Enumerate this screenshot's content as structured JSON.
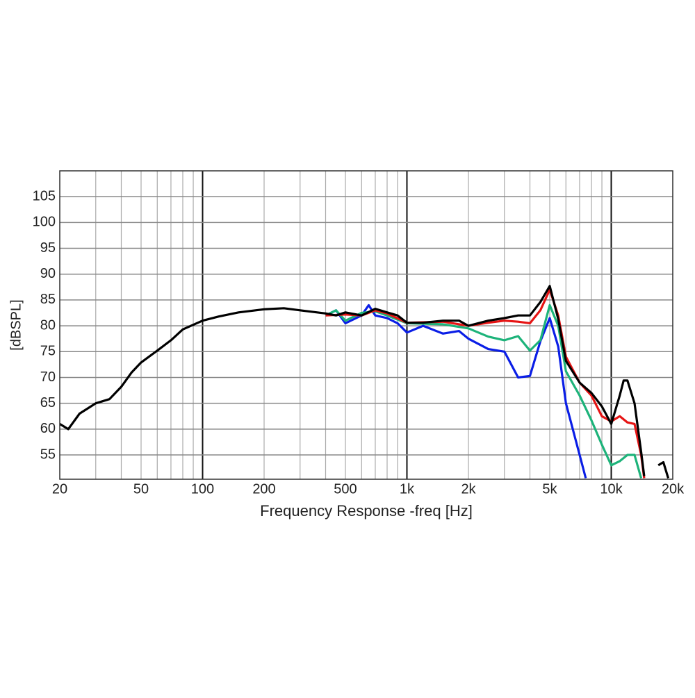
{
  "chart_data": {
    "type": "line",
    "xlabel": "Frequency Response -freq [Hz]",
    "ylabel": "[dBSPL]",
    "xscale": "log",
    "xlim": [
      20,
      20000
    ],
    "ylim": [
      50.3,
      110
    ],
    "xticks": [
      20,
      50,
      100,
      200,
      500,
      {
        "value": 1000,
        "label": "1k"
      },
      {
        "value": 2000,
        "label": "2k"
      },
      {
        "value": 5000,
        "label": "5k"
      },
      {
        "value": 10000,
        "label": "10k"
      },
      {
        "value": 20000,
        "label": "20k"
      }
    ],
    "yticks": [
      55,
      60,
      65,
      70,
      75,
      80,
      85,
      90,
      95,
      100,
      105
    ],
    "xgrid": [
      20,
      30,
      40,
      50,
      60,
      70,
      80,
      90,
      100,
      200,
      300,
      400,
      500,
      600,
      700,
      800,
      900,
      1000,
      2000,
      3000,
      4000,
      5000,
      6000,
      7000,
      8000,
      9000,
      10000,
      20000
    ],
    "xgrid_major": [
      100,
      1000,
      10000
    ],
    "grid": true,
    "series": [
      {
        "name": "blue",
        "color": "#0a1ee6",
        "x": [
          400,
          450,
          500,
          600,
          650,
          700,
          800,
          900,
          1000,
          1200,
          1500,
          1800,
          2000,
          2500,
          3000,
          3500,
          4000,
          4500,
          5000,
          5500,
          6000,
          7000,
          7500
        ],
        "values": [
          82,
          83,
          80.5,
          82,
          84,
          82,
          81.5,
          80.5,
          78.7,
          80,
          78.5,
          79,
          77.5,
          75.5,
          75,
          70,
          70.3,
          77,
          81.5,
          76,
          65,
          55,
          50.5
        ]
      },
      {
        "name": "green",
        "color": "#1db37a",
        "x": [
          400,
          450,
          500,
          600,
          700,
          800,
          1000,
          1500,
          2000,
          2500,
          3000,
          3500,
          4000,
          4500,
          5000,
          5500,
          6000,
          7000,
          8000,
          9000,
          10000,
          11000,
          12000,
          13000,
          14000
        ],
        "values": [
          82,
          83,
          81,
          82.5,
          82.8,
          82,
          80.5,
          80.3,
          79.5,
          77.9,
          77.2,
          78,
          75.2,
          77.2,
          84,
          80,
          71.2,
          66.5,
          61.7,
          57,
          53,
          53.8,
          55,
          55,
          50.5
        ]
      },
      {
        "name": "red",
        "color": "#e61414",
        "x": [
          400,
          500,
          600,
          700,
          800,
          1000,
          1500,
          2000,
          2500,
          3000,
          3500,
          4000,
          4500,
          5000,
          5500,
          6000,
          7000,
          8000,
          9000,
          10000,
          11000,
          12000,
          13000,
          14000,
          14500
        ],
        "values": [
          82,
          82.2,
          82,
          83,
          82.4,
          80.6,
          80.8,
          80,
          80.6,
          81,
          80.8,
          80.5,
          83,
          87,
          82,
          74,
          69,
          66.5,
          62.5,
          61.5,
          62.5,
          61.3,
          61,
          55,
          50.5
        ]
      },
      {
        "name": "black",
        "color": "#000000",
        "x": [
          20,
          22,
          25,
          30,
          35,
          40,
          45,
          50,
          60,
          70,
          80,
          100,
          120,
          150,
          200,
          250,
          300,
          400,
          450,
          500,
          600,
          700,
          800,
          900,
          1000,
          1200,
          1500,
          1800,
          2000,
          2500,
          3000,
          3500,
          4000,
          4500,
          5000,
          5500,
          6000,
          7000,
          8000,
          9000,
          10000,
          11000,
          11500,
          12000,
          13000,
          14000,
          14500,
          16000,
          17000,
          18000,
          19000
        ],
        "values": [
          61,
          60,
          63,
          65,
          65.8,
          68.2,
          71,
          72.9,
          75.2,
          77.2,
          79.3,
          81,
          81.8,
          82.6,
          83.2,
          83.4,
          83,
          82.4,
          82,
          82.6,
          82,
          83.3,
          82.6,
          82,
          80.6,
          80.6,
          81,
          81,
          80,
          81,
          81.5,
          82,
          82,
          84.6,
          87.7,
          81.3,
          73.2,
          69,
          67,
          64.4,
          61,
          66.5,
          69.4,
          69.4,
          65,
          55.6,
          50.9,
          null,
          53,
          53.6,
          50.5
        ]
      }
    ]
  }
}
